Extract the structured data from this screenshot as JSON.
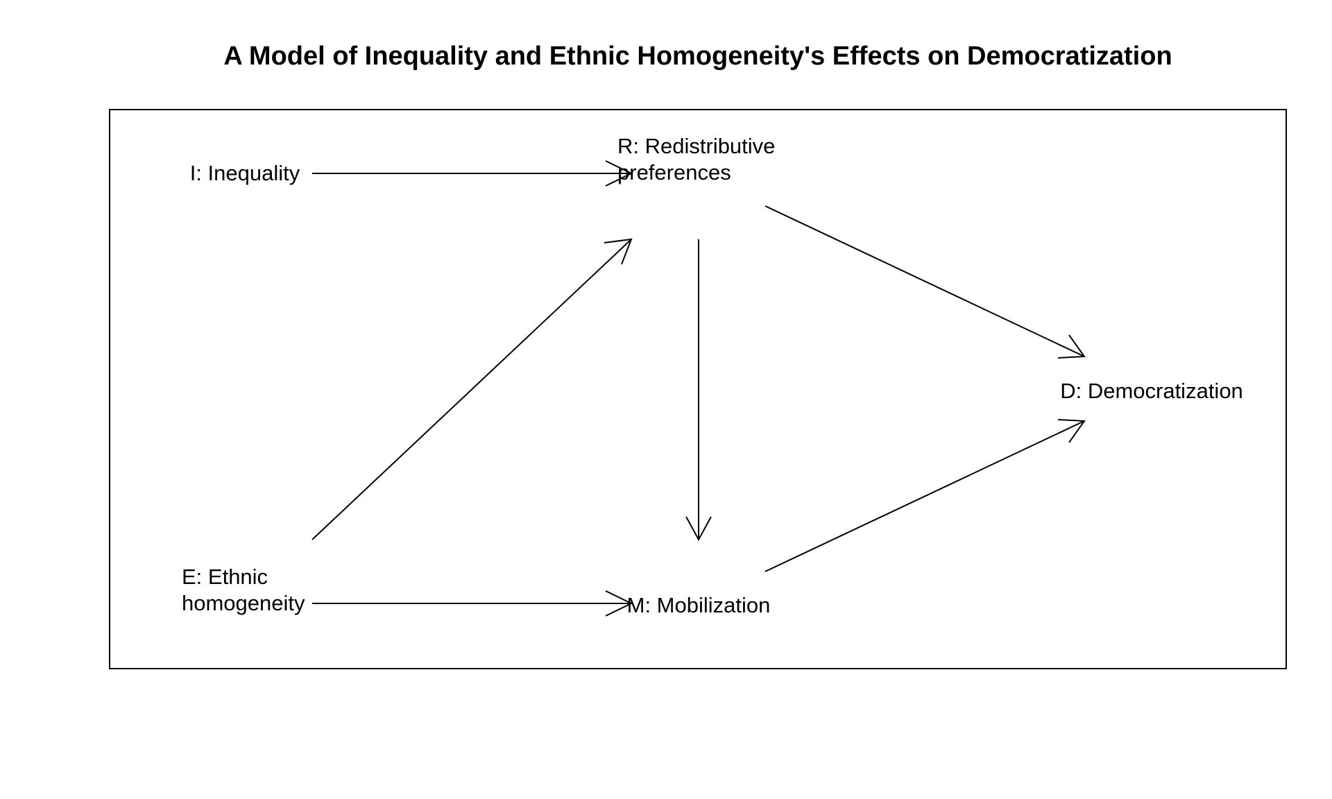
{
  "diagram": {
    "title": "A Model of Inequality and Ethnic Homogeneity's Effects on Democratization",
    "nodes": {
      "inequality": {
        "lines": [
          "I: Inequality"
        ]
      },
      "redistributive": {
        "lines": [
          "R: Redistributive",
          "preferences"
        ]
      },
      "ethnic": {
        "lines": [
          "E: Ethnic",
          "homogeneity"
        ]
      },
      "mobilization": {
        "lines": [
          "M: Mobilization"
        ]
      },
      "democratization": {
        "lines": [
          "D: Democratization"
        ]
      }
    },
    "edges": [
      {
        "from": "inequality",
        "to": "redistributive"
      },
      {
        "from": "ethnic",
        "to": "redistributive"
      },
      {
        "from": "redistributive",
        "to": "mobilization"
      },
      {
        "from": "ethnic",
        "to": "mobilization"
      },
      {
        "from": "redistributive",
        "to": "democratization"
      },
      {
        "from": "mobilization",
        "to": "democratization"
      }
    ]
  }
}
